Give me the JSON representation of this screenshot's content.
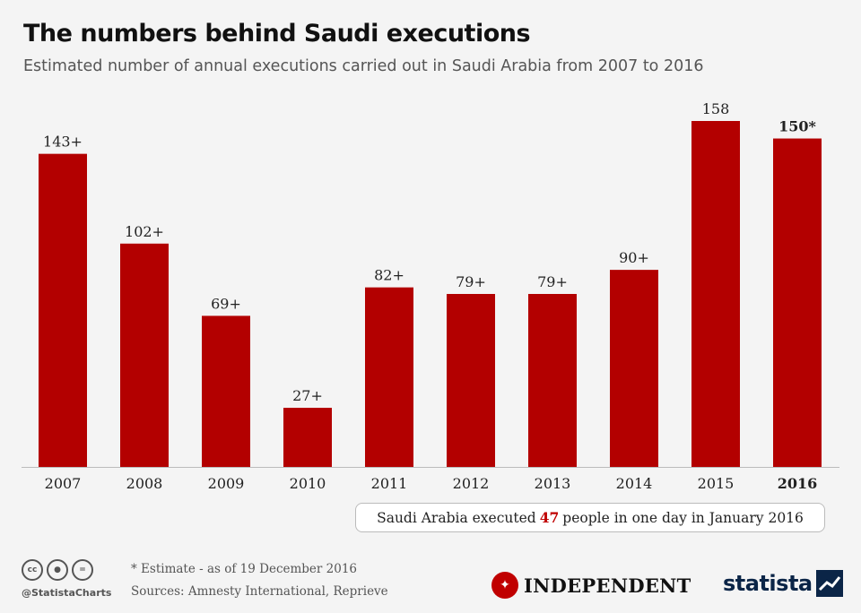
{
  "header": {
    "title": "The numbers behind Saudi executions",
    "subtitle": "Estimated number of annual executions carried out in Saudi Arabia from 2007 to 2016"
  },
  "chart_data": {
    "type": "bar",
    "title": "The numbers behind Saudi executions",
    "subtitle": "Estimated number of annual executions carried out in Saudi Arabia from 2007 to 2016",
    "xlabel": "",
    "ylabel": "",
    "ylim": [
      0,
      170
    ],
    "grid": false,
    "categories": [
      "2007",
      "2008",
      "2009",
      "2010",
      "2011",
      "2012",
      "2013",
      "2014",
      "2015",
      "2016"
    ],
    "values": [
      143,
      102,
      69,
      27,
      82,
      79,
      79,
      90,
      158,
      150
    ],
    "data_labels": [
      "143+",
      "102+",
      "69+",
      "27+",
      "82+",
      "79+",
      "79+",
      "90+",
      "158",
      "150*"
    ],
    "highlight_category": "2016",
    "bar_color": "#b30000"
  },
  "callout": {
    "before": "Saudi Arabia executed",
    "number": "47",
    "after": "people in one day in January 2016"
  },
  "footer": {
    "handle": "@StatistaCharts",
    "note": "* Estimate - as of 19 December 2016",
    "sources": "Sources: Amnesty International, Reprieve",
    "cc_icons": [
      "cc-icon",
      "by-icon",
      "nd-icon"
    ],
    "partner_logo": "INDEPENDENT",
    "brand_logo": "statista"
  }
}
